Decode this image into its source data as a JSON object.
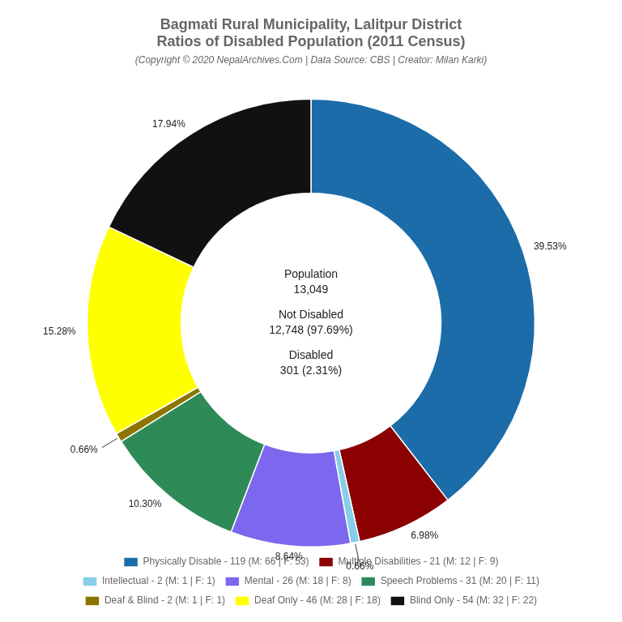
{
  "chart_data": {
    "type": "doughnut",
    "title": [
      "Bagmati Rural Municipality, Lalitpur District",
      "Ratios of Disabled Population (2011 Census)"
    ],
    "subtitle": "(Copyright © 2020 NepalArchives.Com | Data Source: CBS | Creator: Milan Karki)",
    "categories": [
      "Physically Disable - 119 (M: 66 | F: 53)",
      "Multiple Disabilities - 21 (M: 12 | F: 9)",
      "Intellectual - 2 (M: 1 | F: 1)",
      "Mental - 26 (M: 18 | F: 8)",
      "Speech Problems - 31 (M: 20 | F: 11)",
      "Deaf & Blind - 2 (M: 1 | F: 1)",
      "Deaf Only - 46 (M: 28 | F: 18)",
      "Blind Only - 54 (M: 32 | F: 22)"
    ],
    "values": [
      39.53,
      6.98,
      0.66,
      8.64,
      10.3,
      0.66,
      15.28,
      17.94
    ],
    "value_labels": [
      "39.53%",
      "6.98%",
      "0.66%",
      "8.64%",
      "10.30%",
      "0.66%",
      "15.28%",
      "17.94%"
    ],
    "colors": [
      "#1b6ca8",
      "#8b0000",
      "#87ceeb",
      "#7b68ee",
      "#2e8b57",
      "#8b7500",
      "#ffff00",
      "#111111"
    ],
    "data_labels": true,
    "legend": "bottom",
    "annotations": [
      "Population",
      "13,049",
      "Not Disabled",
      "12,748 (97.69%)",
      "Disabled",
      "301 (2.31%)"
    ]
  }
}
